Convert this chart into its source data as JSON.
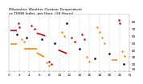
{
  "title": "Milwaukee Weather Outdoor Temperature vs THSW Index per Hour (24 Hours)",
  "background_color": "#ffffff",
  "plot_bg_color": "#ffffff",
  "grid_color": "#aaaaaa",
  "ylim": [
    10,
    90
  ],
  "xlim": [
    0,
    24
  ],
  "temp_color": "#cc0000",
  "thsw_color": "#ff8800",
  "black_color": "#000000",
  "title_color": "#000000",
  "title_fontsize": 3.2,
  "xtick_fontsize": 3.0,
  "ytick_fontsize": 3.0,
  "ytick_right_values": [
    14,
    20,
    30,
    40,
    50,
    60,
    70,
    80
  ],
  "segments": {
    "red_hlines": [
      {
        "x": [
          0.2,
          1.5
        ],
        "y": [
          68,
          68
        ]
      },
      {
        "x": [
          5.5,
          7.2
        ],
        "y": [
          64,
          60
        ]
      },
      {
        "x": [
          9.8,
          11.5
        ],
        "y": [
          40,
          35
        ]
      }
    ],
    "orange_hlines": [
      {
        "x": [
          0.2,
          1.5
        ],
        "y": [
          48,
          48
        ]
      },
      {
        "x": [
          3.0,
          5.5
        ],
        "y": [
          42,
          42
        ]
      },
      {
        "x": [
          5.5,
          7.0
        ],
        "y": [
          36,
          30
        ]
      },
      {
        "x": [
          20.5,
          21.5
        ],
        "y": [
          26,
          26
        ]
      }
    ],
    "red_dots": [
      [
        1.8,
        78
      ],
      [
        2.0,
        72
      ],
      [
        4.5,
        75
      ],
      [
        5.0,
        70
      ],
      [
        8.0,
        24
      ],
      [
        8.5,
        20
      ],
      [
        12.5,
        58
      ],
      [
        13.0,
        52
      ],
      [
        14.5,
        62
      ],
      [
        15.0,
        55
      ],
      [
        21.8,
        82
      ],
      [
        22.0,
        78
      ]
    ],
    "orange_dots": [
      [
        2.5,
        55
      ],
      [
        3.0,
        52
      ],
      [
        7.5,
        22
      ],
      [
        8.0,
        18
      ],
      [
        10.5,
        65
      ],
      [
        11.0,
        60
      ],
      [
        15.5,
        30
      ],
      [
        16.0,
        24
      ],
      [
        17.5,
        72
      ],
      [
        18.0,
        65
      ],
      [
        18.5,
        58
      ],
      [
        19.0,
        50
      ],
      [
        22.5,
        38
      ],
      [
        23.0,
        32
      ]
    ],
    "black_dots": [
      [
        1.5,
        62
      ],
      [
        3.5,
        58
      ],
      [
        6.5,
        55
      ],
      [
        9.0,
        50
      ],
      [
        11.5,
        78
      ],
      [
        14.0,
        42
      ],
      [
        17.0,
        28
      ],
      [
        20.0,
        35
      ],
      [
        22.8,
        20
      ]
    ]
  }
}
